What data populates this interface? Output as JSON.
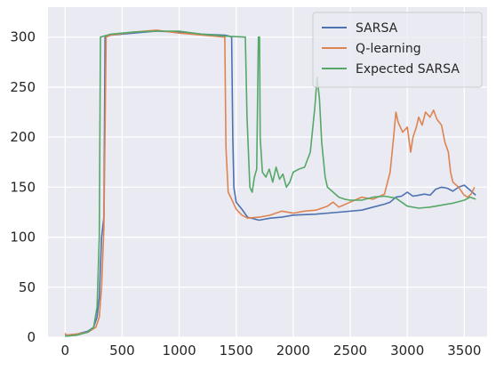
{
  "chart_data": {
    "type": "line",
    "title": "",
    "xlabel": "",
    "ylabel": "",
    "xlim": [
      -150,
      3700
    ],
    "ylim": [
      0,
      330
    ],
    "xticks": [
      0,
      500,
      1000,
      1500,
      2000,
      2500,
      3000,
      3500
    ],
    "yticks": [
      0,
      50,
      100,
      150,
      200,
      250,
      300
    ],
    "grid": true,
    "legend_position": "top-right",
    "series": [
      {
        "name": "SARSA",
        "color": "#4c72b0",
        "points": [
          [
            0,
            2
          ],
          [
            100,
            3
          ],
          [
            200,
            6
          ],
          [
            250,
            10
          ],
          [
            280,
            20
          ],
          [
            300,
            40
          ],
          [
            320,
            100
          ],
          [
            340,
            120
          ],
          [
            350,
            300
          ],
          [
            400,
            302
          ],
          [
            600,
            304
          ],
          [
            800,
            306
          ],
          [
            1000,
            305
          ],
          [
            1200,
            303
          ],
          [
            1400,
            302
          ],
          [
            1440,
            301
          ],
          [
            1460,
            300
          ],
          [
            1470,
            200
          ],
          [
            1480,
            150
          ],
          [
            1500,
            135
          ],
          [
            1550,
            128
          ],
          [
            1600,
            120
          ],
          [
            1700,
            117
          ],
          [
            1800,
            119
          ],
          [
            1900,
            120
          ],
          [
            2000,
            122
          ],
          [
            2200,
            123
          ],
          [
            2400,
            125
          ],
          [
            2600,
            127
          ],
          [
            2700,
            130
          ],
          [
            2800,
            133
          ],
          [
            2850,
            135
          ],
          [
            2900,
            140
          ],
          [
            2950,
            141
          ],
          [
            3000,
            145
          ],
          [
            3050,
            141
          ],
          [
            3100,
            142
          ],
          [
            3150,
            143
          ],
          [
            3200,
            142
          ],
          [
            3250,
            148
          ],
          [
            3300,
            150
          ],
          [
            3350,
            149
          ],
          [
            3400,
            146
          ],
          [
            3450,
            150
          ],
          [
            3500,
            152
          ],
          [
            3550,
            147
          ],
          [
            3600,
            142
          ]
        ]
      },
      {
        "name": "Q-learning",
        "color": "#dd8452",
        "points": [
          [
            0,
            4
          ],
          [
            10,
            2
          ],
          [
            100,
            3
          ],
          [
            200,
            5
          ],
          [
            270,
            10
          ],
          [
            300,
            20
          ],
          [
            320,
            50
          ],
          [
            340,
            110
          ],
          [
            360,
            300
          ],
          [
            400,
            302
          ],
          [
            600,
            305
          ],
          [
            800,
            307
          ],
          [
            1000,
            304
          ],
          [
            1200,
            302
          ],
          [
            1400,
            300
          ],
          [
            1410,
            190
          ],
          [
            1430,
            145
          ],
          [
            1460,
            138
          ],
          [
            1500,
            128
          ],
          [
            1550,
            122
          ],
          [
            1600,
            119
          ],
          [
            1700,
            120
          ],
          [
            1800,
            122
          ],
          [
            1900,
            126
          ],
          [
            2000,
            124
          ],
          [
            2100,
            126
          ],
          [
            2200,
            127
          ],
          [
            2300,
            131
          ],
          [
            2350,
            135
          ],
          [
            2400,
            130
          ],
          [
            2500,
            135
          ],
          [
            2600,
            140
          ],
          [
            2700,
            138
          ],
          [
            2800,
            143
          ],
          [
            2850,
            165
          ],
          [
            2880,
            200
          ],
          [
            2900,
            225
          ],
          [
            2920,
            215
          ],
          [
            2960,
            205
          ],
          [
            3000,
            210
          ],
          [
            3030,
            185
          ],
          [
            3050,
            200
          ],
          [
            3080,
            210
          ],
          [
            3100,
            220
          ],
          [
            3130,
            212
          ],
          [
            3160,
            225
          ],
          [
            3200,
            220
          ],
          [
            3230,
            227
          ],
          [
            3260,
            218
          ],
          [
            3300,
            212
          ],
          [
            3330,
            195
          ],
          [
            3360,
            185
          ],
          [
            3380,
            165
          ],
          [
            3400,
            155
          ],
          [
            3450,
            150
          ],
          [
            3480,
            145
          ],
          [
            3500,
            142
          ],
          [
            3530,
            140
          ],
          [
            3560,
            143
          ],
          [
            3590,
            150
          ]
        ]
      },
      {
        "name": "Expected SARSA",
        "color": "#55a868",
        "points": [
          [
            0,
            1
          ],
          [
            100,
            2
          ],
          [
            200,
            5
          ],
          [
            250,
            10
          ],
          [
            280,
            30
          ],
          [
            300,
            100
          ],
          [
            310,
            300
          ],
          [
            400,
            303
          ],
          [
            600,
            305
          ],
          [
            800,
            306
          ],
          [
            1000,
            306
          ],
          [
            1200,
            303
          ],
          [
            1400,
            301
          ],
          [
            1580,
            300
          ],
          [
            1595,
            220
          ],
          [
            1620,
            150
          ],
          [
            1640,
            145
          ],
          [
            1660,
            160
          ],
          [
            1680,
            168
          ],
          [
            1695,
            300
          ],
          [
            1705,
            300
          ],
          [
            1710,
            200
          ],
          [
            1730,
            165
          ],
          [
            1760,
            160
          ],
          [
            1790,
            168
          ],
          [
            1820,
            155
          ],
          [
            1850,
            170
          ],
          [
            1880,
            158
          ],
          [
            1910,
            163
          ],
          [
            1940,
            150
          ],
          [
            1970,
            155
          ],
          [
            2000,
            165
          ],
          [
            2050,
            168
          ],
          [
            2100,
            170
          ],
          [
            2150,
            185
          ],
          [
            2190,
            230
          ],
          [
            2210,
            260
          ],
          [
            2230,
            238
          ],
          [
            2250,
            195
          ],
          [
            2280,
            160
          ],
          [
            2300,
            150
          ],
          [
            2350,
            145
          ],
          [
            2400,
            140
          ],
          [
            2450,
            138
          ],
          [
            2500,
            137
          ],
          [
            2600,
            137
          ],
          [
            2700,
            140
          ],
          [
            2800,
            141
          ],
          [
            2900,
            139
          ],
          [
            3000,
            131
          ],
          [
            3100,
            129
          ],
          [
            3200,
            130
          ],
          [
            3300,
            132
          ],
          [
            3400,
            134
          ],
          [
            3500,
            137
          ],
          [
            3550,
            140
          ],
          [
            3600,
            138
          ]
        ]
      }
    ]
  }
}
